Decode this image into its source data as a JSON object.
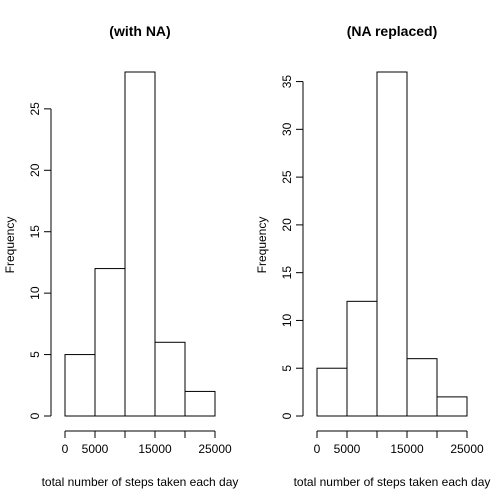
{
  "chart_data": [
    {
      "type": "bar",
      "title": "(with NA)",
      "xlabel": "total number of steps taken each day",
      "ylabel": "Frequency",
      "bins": [
        [
          0,
          5000
        ],
        [
          5000,
          10000
        ],
        [
          10000,
          15000
        ],
        [
          15000,
          20000
        ],
        [
          20000,
          25000
        ]
      ],
      "values": [
        5,
        12,
        28,
        6,
        2
      ],
      "xticks": [
        0,
        5000,
        10000,
        15000,
        20000,
        25000
      ],
      "xtick_labels": [
        "0",
        "5000",
        "",
        "15000",
        "",
        "25000"
      ],
      "yticks": [
        0,
        5,
        10,
        15,
        20,
        25
      ],
      "ytick_labels": [
        "0",
        "5",
        "10",
        "15",
        "20",
        "25"
      ],
      "xlim": [
        0,
        25000
      ],
      "ylim": [
        0,
        28
      ],
      "grid": false
    },
    {
      "type": "bar",
      "title": "(NA replaced)",
      "xlabel": "total number of steps taken each day",
      "ylabel": "Frequency",
      "bins": [
        [
          0,
          5000
        ],
        [
          5000,
          10000
        ],
        [
          10000,
          15000
        ],
        [
          15000,
          20000
        ],
        [
          20000,
          25000
        ]
      ],
      "values": [
        5,
        12,
        36,
        6,
        2
      ],
      "xticks": [
        0,
        5000,
        10000,
        15000,
        20000,
        25000
      ],
      "xtick_labels": [
        "0",
        "5000",
        "",
        "15000",
        "",
        "25000"
      ],
      "yticks": [
        0,
        5,
        10,
        15,
        20,
        25,
        30,
        35
      ],
      "ytick_labels": [
        "0",
        "5",
        "10",
        "15",
        "20",
        "25",
        "30",
        "35"
      ],
      "xlim": [
        0,
        25000
      ],
      "ylim": [
        0,
        36
      ],
      "grid": false
    }
  ]
}
